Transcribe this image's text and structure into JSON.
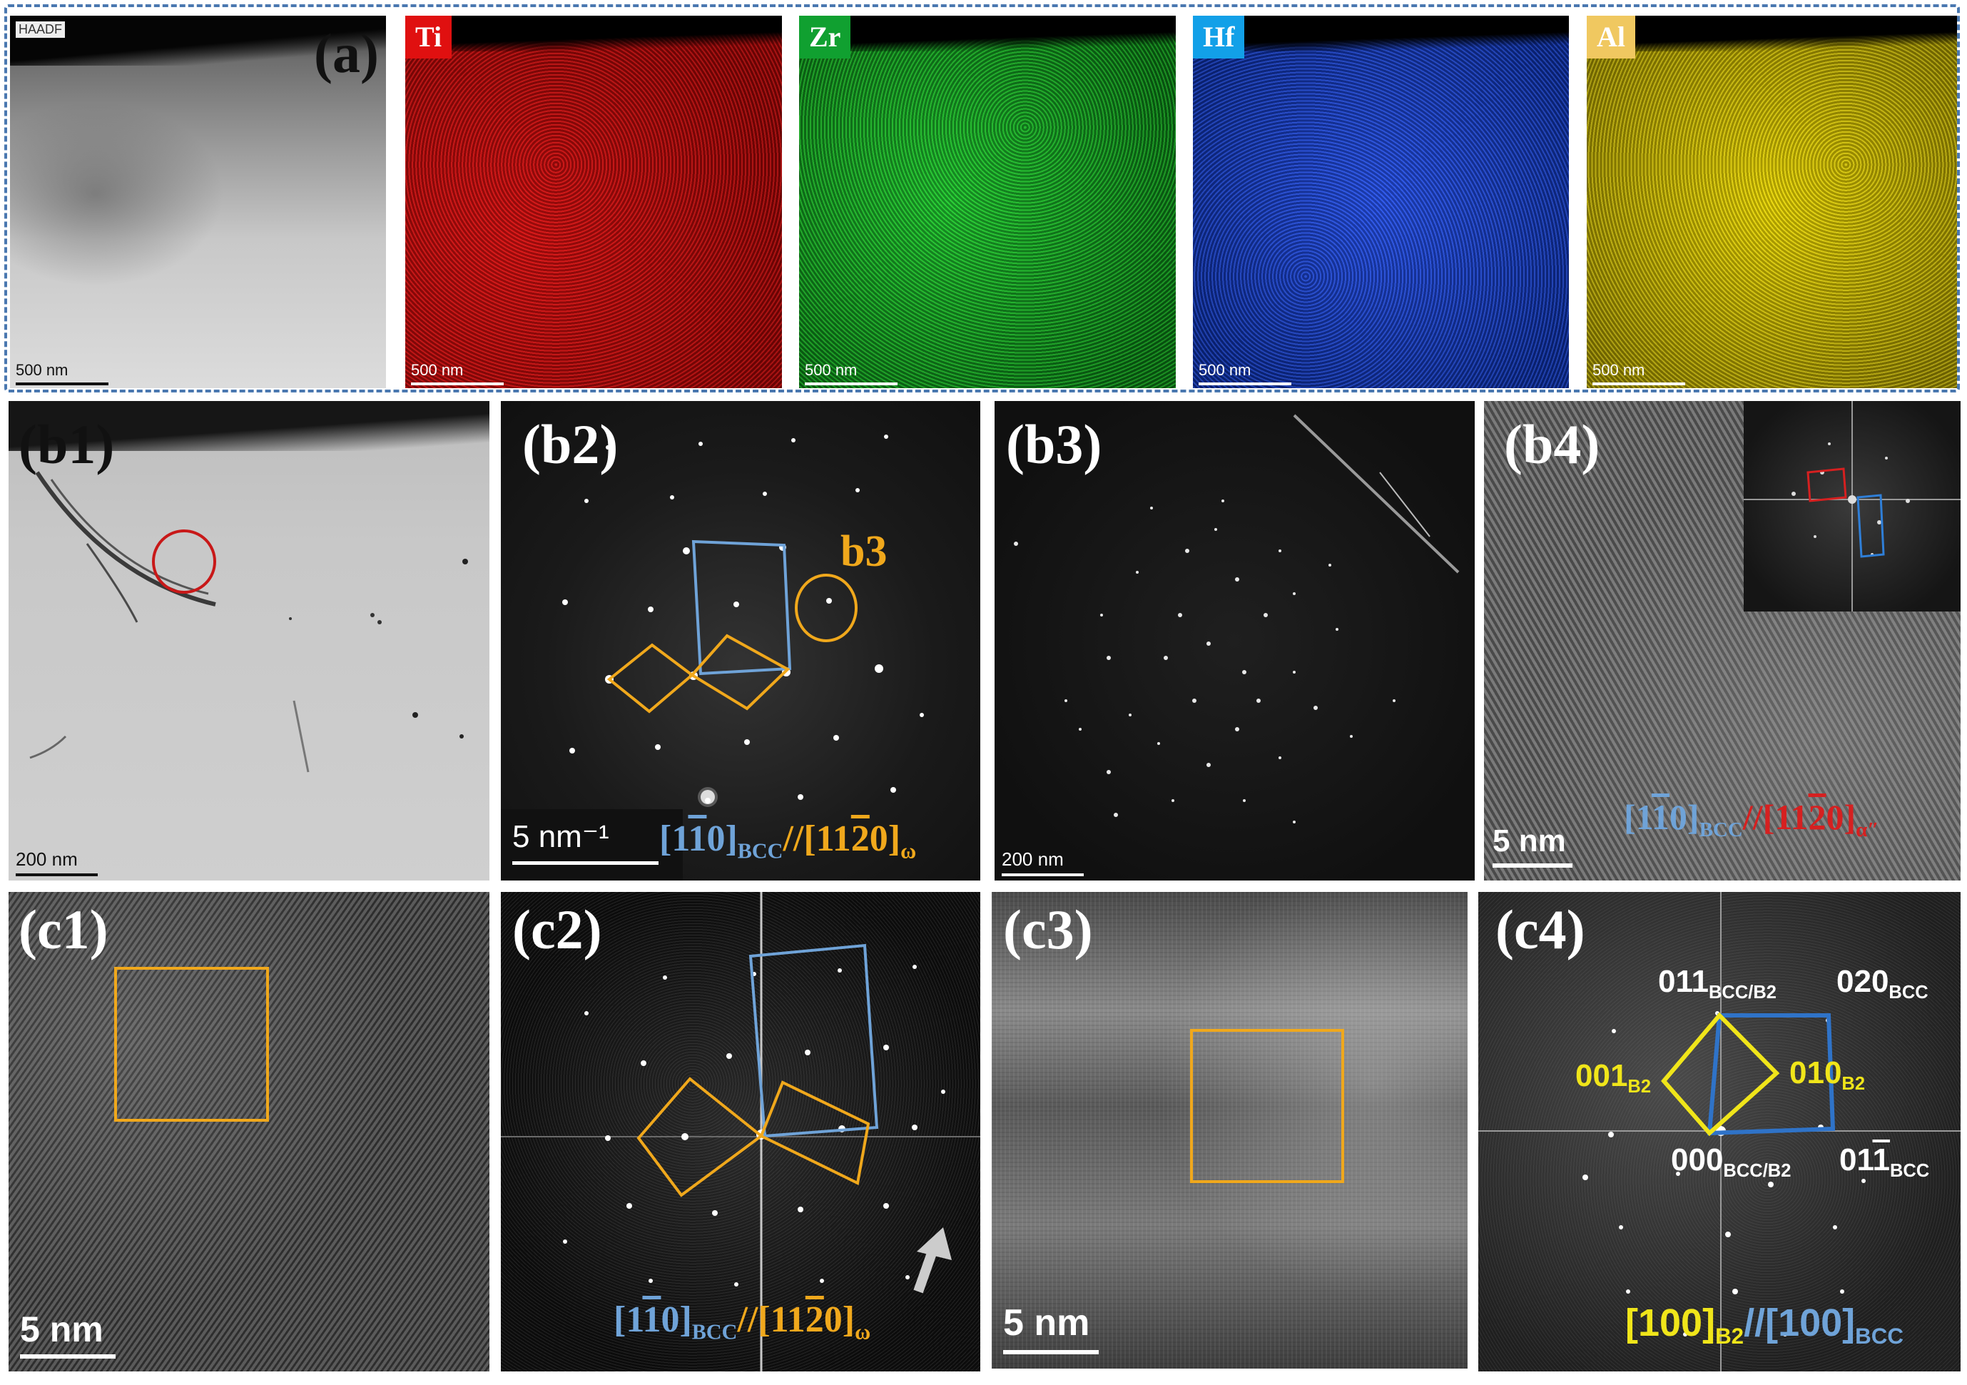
{
  "row_a": {
    "label": "(a)",
    "haadf_tag": "HAADF",
    "maps": [
      {
        "element": "Ti",
        "color": "#e01010"
      },
      {
        "element": "Zr",
        "color": "#10b030"
      },
      {
        "element": "Hf",
        "color": "#1a4ee0"
      },
      {
        "element": "Al",
        "color": "#e6d200"
      }
    ],
    "scale": "500 nm"
  },
  "row_b": {
    "b1": {
      "label": "(b1)",
      "scale": "200 nm"
    },
    "b2": {
      "label": "(b2)",
      "scale": "5 nm⁻¹",
      "region": "b3",
      "zone_a": "[1",
      "zone_b": "1",
      "zone_c": "0]",
      "zone_sub1": "BCC",
      "zone_d": "//[11",
      "zone_e": "2",
      "zone_f": "0]",
      "zone_sub2": "ω"
    },
    "b3": {
      "label": "(b3)",
      "scale": "200 nm"
    },
    "b4": {
      "label": "(b4)",
      "scale": "5 nm",
      "zone_a": "[1",
      "zone_b": "1",
      "zone_c": "0]",
      "zone_sub1": "BCC",
      "zone_d": "//[11",
      "zone_e": "2",
      "zone_f": "0]",
      "zone_sub2": "α″"
    }
  },
  "row_c": {
    "c1": {
      "label": "(c1)",
      "scale": "5 nm"
    },
    "c2": {
      "label": "(c2)",
      "zone_a": "[1",
      "zone_b": "1",
      "zone_c": "0]",
      "zone_sub1": "BCC",
      "zone_d": "//[11",
      "zone_e": "2",
      "zone_f": "0]",
      "zone_sub2": "ω"
    },
    "c3": {
      "label": "(c3)",
      "scale": "5 nm"
    },
    "c4": {
      "label": "(c4)",
      "i011": "011",
      "i011_sub": "BCC/B2",
      "i020": "020",
      "i020_sub": "BCC",
      "i001": "001",
      "i001_sub": "B2",
      "i010": "010",
      "i010_sub": "B2",
      "i000": "000",
      "i000_sub": "BCC/B2",
      "i01m1_a": "01",
      "i01m1_b": "1",
      "i01m1_sub": "BCC",
      "zone_a": "[100]",
      "zone_sub1": "B2",
      "zone_b": "//[100]",
      "zone_sub2": "BCC"
    }
  },
  "colors": {
    "orange": "#f0a81c",
    "blue": "#6fa3d8",
    "red": "#d62020",
    "yellow": "#f0e51a",
    "frame": "#4a78b0"
  }
}
